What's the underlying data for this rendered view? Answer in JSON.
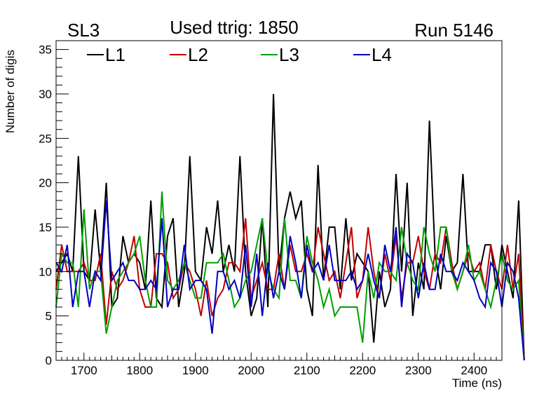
{
  "header": {
    "left": "SL3",
    "center": "Used ttrig: 1850",
    "right": "Run 5146"
  },
  "chart_data": {
    "type": "line",
    "title": "Used ttrig: 1850",
    "xlabel": "Time (ns)",
    "ylabel": "Number of digis",
    "xlim": [
      1650,
      2450
    ],
    "ylim": [
      0,
      36
    ],
    "xticks": [
      1700,
      1800,
      1900,
      2000,
      2100,
      2200,
      2300,
      2400
    ],
    "yticks": [
      0,
      5,
      10,
      15,
      20,
      25,
      30,
      35
    ],
    "x_start": 1650,
    "x_step": 10,
    "legend_position": "top",
    "series": [
      {
        "name": "L1",
        "color": "#000000",
        "values": [
          10,
          11,
          12,
          10,
          23,
          10,
          9,
          17,
          10,
          20,
          6,
          7,
          14,
          11,
          12,
          11,
          8,
          18,
          7,
          6,
          14,
          16,
          6,
          10,
          23,
          10,
          9,
          15,
          12,
          18,
          10,
          13,
          10,
          23,
          10,
          5,
          7,
          16,
          6,
          30,
          10,
          16,
          19,
          16,
          18,
          8,
          5,
          22,
          9,
          15,
          15,
          8,
          16,
          9,
          12,
          11,
          10,
          2,
          10,
          6,
          8,
          21,
          10,
          20,
          5,
          11,
          8,
          27,
          12,
          8,
          14,
          10,
          11,
          21,
          10,
          10,
          10,
          13,
          13,
          8,
          13,
          10,
          7,
          18,
          0
        ]
      },
      {
        "name": "L2",
        "color": "#c00000",
        "values": [
          8,
          13,
          10,
          10,
          10,
          11,
          9,
          9,
          12,
          4,
          10,
          8,
          9,
          11,
          14,
          8,
          6,
          6,
          12,
          12,
          11,
          7,
          8,
          11,
          10,
          8,
          5,
          9,
          5,
          7,
          8,
          11,
          11,
          10,
          16,
          7,
          9,
          11,
          8,
          8,
          12,
          8,
          13,
          10,
          10,
          12,
          10,
          15,
          12,
          9,
          10,
          7,
          11,
          15,
          7,
          9,
          15,
          10,
          7,
          12,
          9,
          14,
          7,
          11,
          11,
          14,
          10,
          8,
          12,
          11,
          15,
          11,
          8,
          10,
          12,
          10,
          11,
          8,
          13,
          10,
          8,
          13,
          8,
          12,
          0
        ]
      },
      {
        "name": "L3",
        "color": "#00a000",
        "values": [
          6,
          12,
          11,
          11,
          6,
          17,
          8,
          10,
          10,
          3,
          6,
          9,
          10,
          11,
          12,
          14,
          9,
          6,
          6,
          19,
          9,
          8,
          9,
          11,
          9,
          7,
          7,
          11,
          11,
          11,
          12,
          9,
          6,
          7,
          9,
          10,
          13,
          16,
          10,
          8,
          7,
          16,
          9,
          9,
          7,
          14,
          11,
          9,
          6,
          8,
          5,
          6,
          6,
          6,
          6,
          2,
          10,
          7,
          11,
          10,
          10,
          9,
          15,
          11,
          9,
          8,
          15,
          12,
          10,
          15,
          15,
          10,
          8,
          10,
          13,
          9,
          10,
          8,
          6,
          9,
          12,
          9,
          8,
          9,
          0
        ]
      },
      {
        "name": "L4",
        "color": "#0000c0",
        "values": [
          11,
          10,
          13,
          6,
          10,
          10,
          6,
          10,
          9,
          18,
          9,
          10,
          11,
          9,
          9,
          8,
          8,
          9,
          8,
          16,
          6,
          8,
          8,
          13,
          8,
          9,
          9,
          8,
          3,
          10,
          10,
          8,
          9,
          7,
          13,
          6,
          12,
          5,
          11,
          7,
          10,
          8,
          14,
          11,
          7,
          13,
          10,
          11,
          9,
          13,
          9,
          9,
          9,
          10,
          8,
          9,
          12,
          9,
          7,
          13,
          10,
          15,
          6,
          12,
          11,
          7,
          11,
          8,
          8,
          12,
          10,
          10,
          9,
          11,
          10,
          9,
          7,
          6,
          11,
          10,
          6,
          11,
          10,
          7,
          0
        ]
      }
    ]
  }
}
